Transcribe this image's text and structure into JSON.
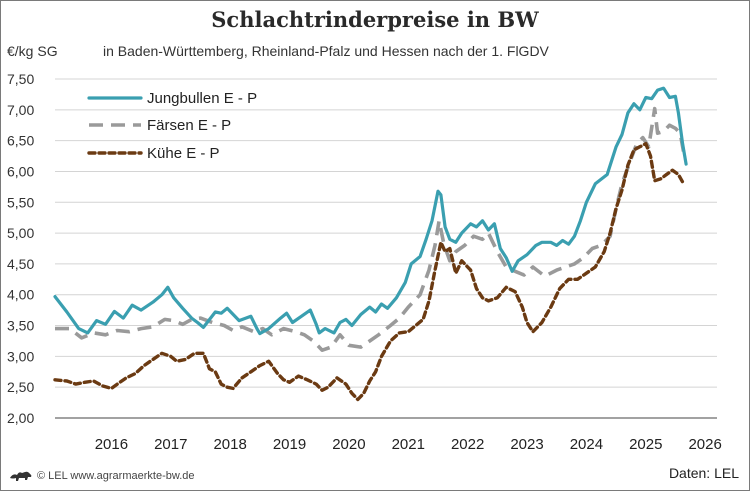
{
  "chart_data": {
    "type": "line",
    "title": "Schlachtrinderpreise in BW",
    "subtitle": "in Baden-Württemberg, Rheinland-Pfalz und Hessen nach der 1. FlGDV",
    "ylabel": "€/kg SG",
    "ylim": [
      2.0,
      7.5
    ],
    "yticks": [
      2.0,
      2.5,
      3.0,
      3.5,
      4.0,
      4.5,
      5.0,
      5.5,
      6.0,
      6.5,
      7.0,
      7.5
    ],
    "ytick_labels": [
      "2,00",
      "2,50",
      "3,00",
      "3,50",
      "4,00",
      "4,50",
      "5,00",
      "5,50",
      "6,00",
      "6,50",
      "7,00",
      "7,50"
    ],
    "xlim": [
      2015.55,
      2026.7
    ],
    "x_categories": [
      "2016",
      "2017",
      "2018",
      "2019",
      "2020",
      "2021",
      "2022",
      "2023",
      "2024",
      "2025",
      "2026"
    ],
    "grid": "horizontal",
    "legend_position": "top-left",
    "series": [
      {
        "name": "Jungbullen E - P",
        "color": "#3a9fb0",
        "style": "solid",
        "points": [
          [
            2015.55,
            3.97
          ],
          [
            2015.75,
            3.72
          ],
          [
            2015.95,
            3.45
          ],
          [
            2016.1,
            3.38
          ],
          [
            2016.25,
            3.58
          ],
          [
            2016.4,
            3.52
          ],
          [
            2016.55,
            3.73
          ],
          [
            2016.7,
            3.62
          ],
          [
            2016.85,
            3.83
          ],
          [
            2017.0,
            3.75
          ],
          [
            2017.2,
            3.88
          ],
          [
            2017.35,
            4.0
          ],
          [
            2017.45,
            4.12
          ],
          [
            2017.55,
            3.95
          ],
          [
            2017.7,
            3.78
          ],
          [
            2017.85,
            3.62
          ],
          [
            2017.95,
            3.55
          ],
          [
            2018.05,
            3.47
          ],
          [
            2018.25,
            3.72
          ],
          [
            2018.35,
            3.7
          ],
          [
            2018.45,
            3.78
          ],
          [
            2018.65,
            3.58
          ],
          [
            2018.85,
            3.65
          ],
          [
            2018.95,
            3.45
          ],
          [
            2019.0,
            3.37
          ],
          [
            2019.15,
            3.45
          ],
          [
            2019.35,
            3.62
          ],
          [
            2019.45,
            3.7
          ],
          [
            2019.55,
            3.55
          ],
          [
            2019.7,
            3.65
          ],
          [
            2019.85,
            3.75
          ],
          [
            2019.95,
            3.52
          ],
          [
            2020.0,
            3.38
          ],
          [
            2020.1,
            3.45
          ],
          [
            2020.25,
            3.38
          ],
          [
            2020.35,
            3.55
          ],
          [
            2020.45,
            3.6
          ],
          [
            2020.55,
            3.5
          ],
          [
            2020.7,
            3.68
          ],
          [
            2020.85,
            3.8
          ],
          [
            2020.95,
            3.72
          ],
          [
            2021.05,
            3.85
          ],
          [
            2021.15,
            3.78
          ],
          [
            2021.3,
            3.95
          ],
          [
            2021.45,
            4.2
          ],
          [
            2021.55,
            4.5
          ],
          [
            2021.7,
            4.62
          ],
          [
            2021.8,
            4.9
          ],
          [
            2021.9,
            5.2
          ],
          [
            2022.0,
            5.68
          ],
          [
            2022.05,
            5.62
          ],
          [
            2022.12,
            5.1
          ],
          [
            2022.2,
            4.9
          ],
          [
            2022.3,
            4.85
          ],
          [
            2022.4,
            5.0
          ],
          [
            2022.55,
            5.15
          ],
          [
            2022.65,
            5.1
          ],
          [
            2022.75,
            5.2
          ],
          [
            2022.85,
            5.05
          ],
          [
            2022.95,
            5.15
          ],
          [
            2023.05,
            4.75
          ],
          [
            2023.15,
            4.6
          ],
          [
            2023.25,
            4.38
          ],
          [
            2023.35,
            4.55
          ],
          [
            2023.5,
            4.65
          ],
          [
            2023.65,
            4.8
          ],
          [
            2023.75,
            4.85
          ],
          [
            2023.9,
            4.85
          ],
          [
            2024.0,
            4.8
          ],
          [
            2024.1,
            4.88
          ],
          [
            2024.2,
            4.82
          ],
          [
            2024.3,
            4.95
          ],
          [
            2024.4,
            5.2
          ],
          [
            2024.5,
            5.5
          ],
          [
            2024.65,
            5.8
          ],
          [
            2024.85,
            5.95
          ],
          [
            2025.0,
            6.4
          ],
          [
            2025.1,
            6.6
          ],
          [
            2025.2,
            6.95
          ],
          [
            2025.3,
            7.1
          ],
          [
            2025.4,
            7.0
          ],
          [
            2025.5,
            7.2
          ],
          [
            2025.6,
            7.18
          ],
          [
            2025.7,
            7.32
          ],
          [
            2025.8,
            7.35
          ],
          [
            2025.9,
            7.2
          ],
          [
            2026.0,
            7.22
          ],
          [
            2026.05,
            6.95
          ],
          [
            2026.12,
            6.45
          ],
          [
            2026.18,
            6.12
          ]
        ]
      },
      {
        "name": "Färsen E - P",
        "color": "#9a9a9a",
        "style": "dashed",
        "points": [
          [
            2015.55,
            3.45
          ],
          [
            2015.8,
            3.45
          ],
          [
            2016.0,
            3.3
          ],
          [
            2016.2,
            3.38
          ],
          [
            2016.4,
            3.35
          ],
          [
            2016.6,
            3.42
          ],
          [
            2016.8,
            3.4
          ],
          [
            2017.0,
            3.45
          ],
          [
            2017.2,
            3.48
          ],
          [
            2017.4,
            3.6
          ],
          [
            2017.55,
            3.58
          ],
          [
            2017.7,
            3.52
          ],
          [
            2017.85,
            3.6
          ],
          [
            2018.0,
            3.62
          ],
          [
            2018.2,
            3.55
          ],
          [
            2018.4,
            3.5
          ],
          [
            2018.55,
            3.42
          ],
          [
            2018.7,
            3.48
          ],
          [
            2018.9,
            3.4
          ],
          [
            2019.05,
            3.45
          ],
          [
            2019.2,
            3.35
          ],
          [
            2019.4,
            3.45
          ],
          [
            2019.6,
            3.4
          ],
          [
            2019.75,
            3.35
          ],
          [
            2019.9,
            3.25
          ],
          [
            2020.05,
            3.1
          ],
          [
            2020.2,
            3.15
          ],
          [
            2020.35,
            3.35
          ],
          [
            2020.5,
            3.18
          ],
          [
            2020.7,
            3.15
          ],
          [
            2020.85,
            3.25
          ],
          [
            2021.0,
            3.35
          ],
          [
            2021.2,
            3.5
          ],
          [
            2021.35,
            3.62
          ],
          [
            2021.5,
            3.8
          ],
          [
            2021.7,
            4.0
          ],
          [
            2021.85,
            4.4
          ],
          [
            2021.95,
            4.8
          ],
          [
            2022.02,
            5.2
          ],
          [
            2022.1,
            4.82
          ],
          [
            2022.2,
            4.55
          ],
          [
            2022.3,
            4.7
          ],
          [
            2022.45,
            4.8
          ],
          [
            2022.6,
            4.95
          ],
          [
            2022.75,
            4.9
          ],
          [
            2022.85,
            5.0
          ],
          [
            2023.0,
            4.7
          ],
          [
            2023.15,
            4.45
          ],
          [
            2023.3,
            4.38
          ],
          [
            2023.45,
            4.32
          ],
          [
            2023.6,
            4.45
          ],
          [
            2023.8,
            4.3
          ],
          [
            2024.0,
            4.4
          ],
          [
            2024.15,
            4.45
          ],
          [
            2024.3,
            4.5
          ],
          [
            2024.45,
            4.6
          ],
          [
            2024.6,
            4.75
          ],
          [
            2024.75,
            4.8
          ],
          [
            2024.9,
            4.95
          ],
          [
            2025.0,
            5.4
          ],
          [
            2025.1,
            5.8
          ],
          [
            2025.25,
            6.2
          ],
          [
            2025.35,
            6.45
          ],
          [
            2025.45,
            6.55
          ],
          [
            2025.55,
            6.4
          ],
          [
            2025.65,
            7.02
          ],
          [
            2025.7,
            6.62
          ],
          [
            2025.8,
            6.65
          ],
          [
            2025.9,
            6.75
          ],
          [
            2026.0,
            6.7
          ],
          [
            2026.08,
            6.62
          ],
          [
            2026.15,
            6.25
          ]
        ]
      },
      {
        "name": "Kühe E - P",
        "color": "#6b3a12",
        "style": "dotted",
        "points": [
          [
            2015.55,
            2.62
          ],
          [
            2015.75,
            2.6
          ],
          [
            2015.9,
            2.55
          ],
          [
            2016.05,
            2.58
          ],
          [
            2016.2,
            2.6
          ],
          [
            2016.35,
            2.52
          ],
          [
            2016.5,
            2.48
          ],
          [
            2016.6,
            2.55
          ],
          [
            2016.75,
            2.65
          ],
          [
            2016.9,
            2.72
          ],
          [
            2017.05,
            2.85
          ],
          [
            2017.2,
            2.95
          ],
          [
            2017.35,
            3.05
          ],
          [
            2017.5,
            3.0
          ],
          [
            2017.6,
            2.92
          ],
          [
            2017.75,
            2.95
          ],
          [
            2017.9,
            3.05
          ],
          [
            2018.05,
            3.05
          ],
          [
            2018.15,
            2.8
          ],
          [
            2018.25,
            2.75
          ],
          [
            2018.35,
            2.55
          ],
          [
            2018.45,
            2.5
          ],
          [
            2018.55,
            2.48
          ],
          [
            2018.7,
            2.65
          ],
          [
            2018.85,
            2.75
          ],
          [
            2019.0,
            2.85
          ],
          [
            2019.15,
            2.92
          ],
          [
            2019.3,
            2.72
          ],
          [
            2019.4,
            2.62
          ],
          [
            2019.5,
            2.58
          ],
          [
            2019.65,
            2.68
          ],
          [
            2019.8,
            2.62
          ],
          [
            2019.95,
            2.55
          ],
          [
            2020.05,
            2.45
          ],
          [
            2020.15,
            2.5
          ],
          [
            2020.3,
            2.65
          ],
          [
            2020.45,
            2.55
          ],
          [
            2020.55,
            2.4
          ],
          [
            2020.65,
            2.3
          ],
          [
            2020.75,
            2.4
          ],
          [
            2020.85,
            2.6
          ],
          [
            2020.95,
            2.75
          ],
          [
            2021.05,
            3.0
          ],
          [
            2021.2,
            3.25
          ],
          [
            2021.35,
            3.38
          ],
          [
            2021.5,
            3.4
          ],
          [
            2021.6,
            3.48
          ],
          [
            2021.75,
            3.6
          ],
          [
            2021.85,
            3.9
          ],
          [
            2021.95,
            4.4
          ],
          [
            2022.05,
            4.85
          ],
          [
            2022.12,
            4.7
          ],
          [
            2022.2,
            4.75
          ],
          [
            2022.3,
            4.35
          ],
          [
            2022.4,
            4.55
          ],
          [
            2022.55,
            4.4
          ],
          [
            2022.65,
            4.1
          ],
          [
            2022.75,
            3.95
          ],
          [
            2022.85,
            3.9
          ],
          [
            2023.0,
            3.95
          ],
          [
            2023.15,
            4.12
          ],
          [
            2023.3,
            4.05
          ],
          [
            2023.42,
            3.8
          ],
          [
            2023.5,
            3.55
          ],
          [
            2023.6,
            3.4
          ],
          [
            2023.75,
            3.55
          ],
          [
            2023.9,
            3.8
          ],
          [
            2024.05,
            4.1
          ],
          [
            2024.2,
            4.25
          ],
          [
            2024.35,
            4.25
          ],
          [
            2024.5,
            4.35
          ],
          [
            2024.65,
            4.45
          ],
          [
            2024.8,
            4.7
          ],
          [
            2024.9,
            5.0
          ],
          [
            2025.0,
            5.4
          ],
          [
            2025.1,
            5.7
          ],
          [
            2025.2,
            6.1
          ],
          [
            2025.3,
            6.35
          ],
          [
            2025.4,
            6.4
          ],
          [
            2025.5,
            6.45
          ],
          [
            2025.58,
            6.25
          ],
          [
            2025.65,
            5.85
          ],
          [
            2025.75,
            5.88
          ],
          [
            2025.85,
            5.95
          ],
          [
            2025.95,
            6.02
          ],
          [
            2026.05,
            5.95
          ],
          [
            2026.15,
            5.78
          ]
        ]
      }
    ]
  },
  "footer": {
    "copyright": "© LEL www.agrarmaerkte-bw.de",
    "source": "Daten: LEL"
  }
}
